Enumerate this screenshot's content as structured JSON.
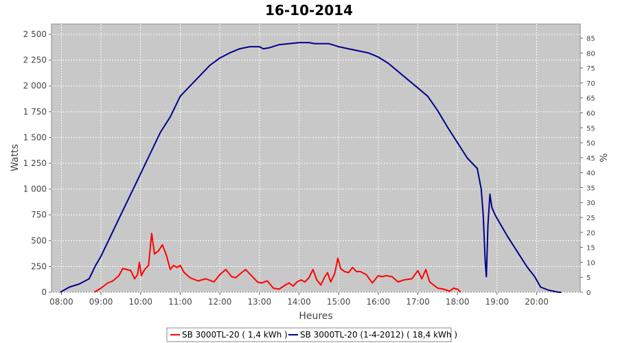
{
  "chart_data": {
    "type": "line",
    "title": "16-10-2014",
    "xlabel": "Heures",
    "ylabel": "Watts",
    "y2label": "%",
    "xlim": [
      7.75,
      21.1
    ],
    "ylim": [
      0,
      2600
    ],
    "y2lim": [
      0,
      89.7
    ],
    "x_ticks": [
      "08:00",
      "09:00",
      "10:00",
      "11:00",
      "12:00",
      "13:00",
      "14:00",
      "15:00",
      "16:00",
      "17:00",
      "18:00",
      "19:00",
      "20:00"
    ],
    "y_ticks": [
      "0",
      "250",
      "500",
      "750",
      "1 000",
      "1 250",
      "1 500",
      "1 750",
      "2 000",
      "2 250",
      "2 500"
    ],
    "y2_ticks": [
      "0",
      "5",
      "10",
      "15",
      "20",
      "25",
      "30",
      "35",
      "40",
      "45",
      "50",
      "55",
      "60",
      "65",
      "70",
      "75",
      "80",
      "85"
    ],
    "grid": true,
    "plot_background": "#c8c8c8",
    "legend_position": "bottom",
    "series": [
      {
        "name": "SB 3000TL-20 ( 1,4 kWh )",
        "color": "#ff0000",
        "x": [
          8.83,
          9.0,
          9.17,
          9.3,
          9.45,
          9.55,
          9.65,
          9.75,
          9.85,
          9.92,
          9.97,
          10.02,
          10.1,
          10.2,
          10.28,
          10.35,
          10.45,
          10.55,
          10.65,
          10.75,
          10.83,
          10.92,
          11.0,
          11.1,
          11.25,
          11.45,
          11.65,
          11.85,
          12.0,
          12.15,
          12.3,
          12.4,
          12.55,
          12.65,
          12.8,
          12.95,
          13.05,
          13.2,
          13.35,
          13.5,
          13.65,
          13.75,
          13.85,
          13.95,
          14.05,
          14.15,
          14.25,
          14.35,
          14.45,
          14.55,
          14.65,
          14.72,
          14.8,
          14.9,
          14.98,
          15.05,
          15.15,
          15.25,
          15.35,
          15.45,
          15.55,
          15.7,
          15.85,
          16.0,
          16.1,
          16.2,
          16.35,
          16.5,
          16.65,
          16.85,
          17.0,
          17.1,
          17.2,
          17.3,
          17.4,
          17.5,
          17.65,
          17.8,
          17.9,
          18.0,
          18.08
        ],
        "values": [
          0,
          40,
          90,
          110,
          160,
          230,
          220,
          210,
          130,
          170,
          290,
          160,
          220,
          260,
          570,
          370,
          400,
          460,
          360,
          220,
          260,
          240,
          260,
          190,
          140,
          110,
          130,
          100,
          170,
          220,
          150,
          140,
          190,
          220,
          160,
          100,
          90,
          110,
          40,
          30,
          70,
          90,
          60,
          100,
          120,
          100,
          140,
          220,
          120,
          70,
          150,
          190,
          100,
          180,
          330,
          230,
          200,
          190,
          240,
          200,
          200,
          170,
          90,
          160,
          150,
          160,
          150,
          100,
          120,
          130,
          210,
          130,
          220,
          100,
          70,
          40,
          30,
          10,
          40,
          30,
          0
        ]
      },
      {
        "name": "SB 3000TL-20 (1-4-2012) ( 18,4 kWh )",
        "color": "#00008b",
        "x": [
          7.97,
          8.2,
          8.45,
          8.7,
          8.85,
          9.0,
          9.25,
          9.5,
          9.75,
          10.0,
          10.25,
          10.5,
          10.75,
          11.0,
          11.25,
          11.5,
          11.75,
          12.0,
          12.25,
          12.5,
          12.75,
          13.0,
          13.1,
          13.25,
          13.5,
          13.75,
          14.0,
          14.25,
          14.4,
          14.5,
          14.75,
          15.0,
          15.25,
          15.5,
          15.75,
          16.0,
          16.25,
          16.5,
          16.75,
          17.0,
          17.25,
          17.5,
          17.75,
          18.0,
          18.25,
          18.5,
          18.6,
          18.65,
          18.7,
          18.73,
          18.77,
          18.82,
          18.87,
          18.95,
          19.1,
          19.25,
          19.5,
          19.75,
          19.95,
          20.1,
          20.3,
          20.55,
          20.62
        ],
        "values": [
          0,
          50,
          80,
          130,
          250,
          350,
          550,
          750,
          950,
          1150,
          1350,
          1550,
          1700,
          1900,
          2000,
          2100,
          2200,
          2270,
          2320,
          2360,
          2380,
          2380,
          2360,
          2370,
          2400,
          2410,
          2420,
          2420,
          2410,
          2410,
          2410,
          2380,
          2360,
          2340,
          2320,
          2280,
          2220,
          2140,
          2060,
          1980,
          1900,
          1760,
          1600,
          1450,
          1300,
          1200,
          1000,
          750,
          300,
          150,
          650,
          950,
          820,
          750,
          650,
          550,
          400,
          250,
          150,
          50,
          20,
          0,
          0
        ]
      }
    ]
  }
}
